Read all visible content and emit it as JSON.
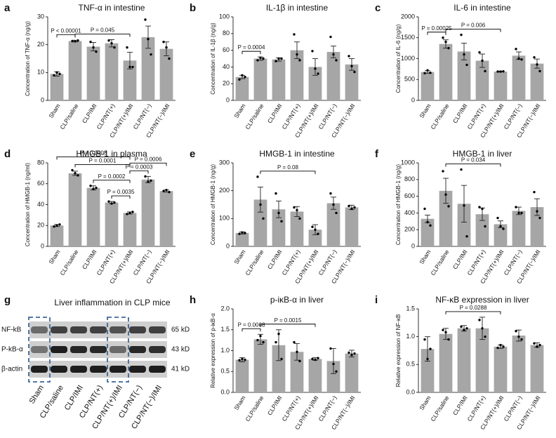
{
  "chart_data": [
    {
      "type": "bar",
      "label": "a",
      "title": "TNF-α in intestine",
      "y_label": "Concentration of TNF-α (ng/g)",
      "categories": [
        "Sham",
        "CLP/saline",
        "CLP/IMI",
        "CLP/NT(+)",
        "CLP/NT(+)/IMI",
        "CLP/NT(−)",
        "CLP/NT(−)/IMI"
      ],
      "values": [
        9.5,
        21.3,
        19.3,
        20.5,
        14.3,
        22.7,
        18.5
      ],
      "errors": [
        0.8,
        0.3,
        1.5,
        1.3,
        3,
        4,
        2.5
      ],
      "points": [
        [
          9,
          10,
          9.5
        ],
        [
          21.3,
          21.2,
          21.5
        ],
        [
          21,
          19,
          17.5
        ],
        [
          21.5,
          20.5,
          19
        ],
        [
          19,
          12,
          12
        ],
        [
          29,
          22,
          16.5
        ],
        [
          21,
          19,
          15
        ]
      ],
      "color": "#a6a6a6",
      "ylim": [
        0,
        30
      ],
      "yticks": [
        0,
        10,
        20,
        30
      ],
      "annotations": [
        {
          "text": "P < 0.00001",
          "from": 0,
          "to": 1
        },
        {
          "text": "P = 0.045",
          "from": 1,
          "to": 4
        }
      ]
    },
    {
      "type": "bar",
      "label": "b",
      "title": "IL-1β in intestine",
      "y_label": "Concentration of IL-1β (ng/g)",
      "categories": [
        "Sham",
        "CLP/saline",
        "CLP/IMI",
        "CLP/NT(+)",
        "CLP/NT(+)/IMI",
        "CLP/NT(−)",
        "CLP/NT(−)/IMI"
      ],
      "values": [
        28,
        50,
        49,
        60,
        40,
        58,
        43
      ],
      "errors": [
        2,
        2,
        2,
        10,
        10,
        7,
        7
      ],
      "points": [
        [
          25,
          30,
          28
        ],
        [
          48,
          51,
          50
        ],
        [
          47,
          50,
          50
        ],
        [
          79,
          55,
          48
        ],
        [
          59,
          38,
          32
        ],
        [
          76,
          55,
          48
        ],
        [
          53,
          41,
          34
        ]
      ],
      "color": "#a6a6a6",
      "ylim": [
        0,
        100
      ],
      "yticks": [
        0,
        20,
        40,
        60,
        80,
        100
      ],
      "annotations": [
        {
          "text": "P = 0.0004",
          "from": 0,
          "to": 1
        }
      ]
    },
    {
      "type": "bar",
      "label": "c",
      "title": "IL-6 in intestine",
      "y_label": "Concentration of IL-6 (ng/g)",
      "categories": [
        "Sham",
        "CLP/saline",
        "CLP/IMI",
        "CLP/NT(+)",
        "CLP/NT(+)/IMI",
        "CLP/NT(−)",
        "CLP/NT(−)/IMI"
      ],
      "values": [
        680,
        1350,
        1170,
        950,
        690,
        1070,
        880
      ],
      "errors": [
        30,
        100,
        200,
        160,
        10,
        90,
        110
      ],
      "points": [
        [
          650,
          720,
          660
        ],
        [
          1500,
          1400,
          1250
        ],
        [
          1570,
          1100,
          850
        ],
        [
          1150,
          950,
          700
        ],
        [
          690,
          690,
          695
        ],
        [
          1230,
          1000,
          980
        ],
        [
          1030,
          860,
          700
        ]
      ],
      "color": "#a6a6a6",
      "ylim": [
        0,
        2000
      ],
      "yticks": [
        0,
        500,
        1000,
        1500,
        2000
      ],
      "annotations": [
        {
          "text": "P = 0.00025",
          "from": 0,
          "to": 1
        },
        {
          "text": "P = 0.006",
          "from": 1,
          "to": 4
        }
      ]
    },
    {
      "type": "bar",
      "label": "d",
      "title": "HMGB-1 in plasma",
      "y_label": "Concentration of HMGB-1 (ng/ml)",
      "categories": [
        "Sham",
        "CLP/saline",
        "CLP/IMI",
        "CLP/NT(+)",
        "CLP/NT(+)/IMI",
        "CLP/NT(−)",
        "CLP/NT(−)/IMI"
      ],
      "values": [
        20,
        70,
        56,
        42,
        32,
        64,
        53
      ],
      "errors": [
        1,
        2,
        2,
        1,
        1,
        3,
        1
      ],
      "points": [
        [
          19,
          20,
          21
        ],
        [
          73,
          70,
          68
        ],
        [
          58,
          55,
          56
        ],
        [
          43,
          41,
          42
        ],
        [
          31,
          32,
          33
        ],
        [
          67,
          62,
          63
        ],
        [
          53,
          54,
          52
        ]
      ],
      "color": "#a6a6a6",
      "ylim": [
        0,
        80
      ],
      "yticks": [
        0,
        20,
        40,
        60,
        80
      ],
      "annotations": [
        {
          "text": "P = 0.0035",
          "from": 3,
          "to": 4
        },
        {
          "text": "P = 0.0002",
          "from": 2,
          "to": 4
        },
        {
          "text": "P = 0.0001",
          "from": 1,
          "to": 4
        },
        {
          "text": "P = 0.0008",
          "from": 0,
          "to": 4
        },
        {
          "text": "P = 0.0003",
          "from": 4,
          "to": 5
        },
        {
          "text": "P = 0.0006",
          "from": 4,
          "to": 6
        }
      ]
    },
    {
      "type": "bar",
      "label": "e",
      "title": "HMGB-1 in intestine",
      "y_label": "Concentration of HMGB-1 (ng/g)",
      "categories": [
        "Sham",
        "CLP/saline",
        "CLP/IMI",
        "CLP/NT(+)",
        "CLP/NT(+)/IMI",
        "CLP/NT(−)",
        "CLP/NT(−)/IMI"
      ],
      "values": [
        48,
        168,
        133,
        125,
        60,
        155,
        140
      ],
      "errors": [
        4,
        45,
        30,
        18,
        18,
        22,
        8
      ],
      "points": [
        [
          45,
          50,
          48
        ],
        [
          250,
          150,
          100
        ],
        [
          190,
          120,
          90
        ],
        [
          140,
          130,
          100
        ],
        [
          70,
          60,
          45
        ],
        [
          190,
          150,
          120
        ],
        [
          145,
          135,
          140
        ]
      ],
      "color": "#a6a6a6",
      "ylim": [
        0,
        300
      ],
      "yticks": [
        0,
        100,
        200,
        300
      ],
      "annotations": [
        {
          "text": "P = 0.08",
          "from": 1,
          "to": 4
        }
      ]
    },
    {
      "type": "bar",
      "label": "f",
      "title": "HMGB-1 in liver",
      "y_label": "Concentration of HMGB-1 (ng/g)",
      "categories": [
        "Sham",
        "CLP/saline",
        "CLP/IMI",
        "CLP/NT(+)",
        "CLP/NT(+)/IMI",
        "CLP/NT(−)",
        "CLP/NT(−)/IMI"
      ],
      "values": [
        330,
        665,
        510,
        385,
        265,
        425,
        470
      ],
      "errors": [
        45,
        150,
        220,
        75,
        40,
        45,
        100
      ],
      "points": [
        [
          450,
          290,
          250
        ],
        [
          900,
          620,
          480
        ],
        [
          920,
          490,
          120
        ],
        [
          470,
          450,
          240
        ],
        [
          340,
          240,
          210
        ],
        [
          470,
          400,
          400
        ],
        [
          650,
          420,
          340
        ]
      ],
      "color": "#a6a6a6",
      "ylim": [
        0,
        1000
      ],
      "yticks": [
        0,
        200,
        400,
        600,
        800,
        1000
      ],
      "annotations": [
        {
          "text": "P = 0.034",
          "from": 1,
          "to": 4
        }
      ]
    },
    {
      "type": "bar",
      "label": "h",
      "title": "p-iκB-α in liver",
      "y_label": "Relative expression of p-iκB-α",
      "categories": [
        "Sham",
        "CLP/saline",
        "CLP/IMI",
        "CLP/NT(+)",
        "CLP/NT(+)/IMI",
        "CLP/NT(−)",
        "CLP/NT(−)/IMI"
      ],
      "values": [
        0.78,
        1.27,
        1.13,
        0.97,
        0.8,
        0.75,
        0.93
      ],
      "errors": [
        0.05,
        0.12,
        0.37,
        0.2,
        0.03,
        0.3,
        0.08
      ],
      "points": [
        [
          0.77,
          0.8,
          0.78
        ],
        [
          1.25,
          1.35,
          1.2
        ],
        [
          1.2,
          1.4,
          0.8
        ],
        [
          1.2,
          0.97,
          0.75
        ],
        [
          0.8,
          0.78,
          0.82
        ],
        [
          1.05,
          0.68,
          0.5
        ],
        [
          0.95,
          0.9,
          0.93
        ]
      ],
      "color": "#a6a6a6",
      "ylim": [
        0,
        2
      ],
      "yticks": [
        {
          "value": 0,
          "label": "0.0"
        },
        0.5,
        {
          "value": 1,
          "label": "1.0"
        },
        1.5,
        {
          "value": 2,
          "label": "2.0"
        }
      ],
      "annotations": [
        {
          "text": "P = 0.0068",
          "from": 0,
          "to": 1
        },
        {
          "text": "P = 0.0015",
          "from": 1,
          "to": 4
        }
      ]
    },
    {
      "type": "bar",
      "label": "i",
      "title": "NF-κB expression in liver",
      "y_label": "Relative expression of NF-κB",
      "categories": [
        "Sham",
        "CLP/saline",
        "CLP/IMI",
        "CLP/NT(+)",
        "CLP/NT(+)/IMI",
        "CLP/NT(−)",
        "CLP/NT(−)/IMI"
      ],
      "values": [
        0.78,
        1.05,
        1.15,
        1.15,
        0.82,
        1.02,
        0.85
      ],
      "errors": [
        0.22,
        0.1,
        0.05,
        0.2,
        0.03,
        0.1,
        0.04
      ],
      "points": [
        [
          0.95,
          0.6,
          0.78
        ],
        [
          1.12,
          1.08,
          0.95
        ],
        [
          1.18,
          1.12,
          1.15
        ],
        [
          1.3,
          1.15,
          1.0
        ],
        [
          0.8,
          0.85,
          0.82
        ],
        [
          1.1,
          1.0,
          0.95
        ],
        [
          0.88,
          0.82,
          0.85
        ]
      ],
      "color": "#a6a6a6",
      "ylim": [
        0,
        1.5
      ],
      "yticks": [
        {
          "value": 0,
          "label": "0.0"
        },
        0.5,
        {
          "value": 1,
          "label": "1.0"
        },
        1.5
      ],
      "annotations": [
        {
          "text": "P = 0.0288",
          "from": 1,
          "to": 4
        }
      ]
    }
  ],
  "blot": {
    "label": "g",
    "title": "Liver inflammation in CLP mice",
    "rows": [
      "NF-kB",
      "P-kB-α",
      "β-actin"
    ],
    "sizes": [
      "65 kD",
      "43 kD",
      "41 kD"
    ],
    "lanes": [
      "Sham",
      "CLP/saline",
      "CLP/IMI",
      "CLP/NT(+)",
      "CLP/NT(+)/IMI",
      "CLP/NT(−)",
      "CLP/NT(−)/IMI"
    ]
  }
}
